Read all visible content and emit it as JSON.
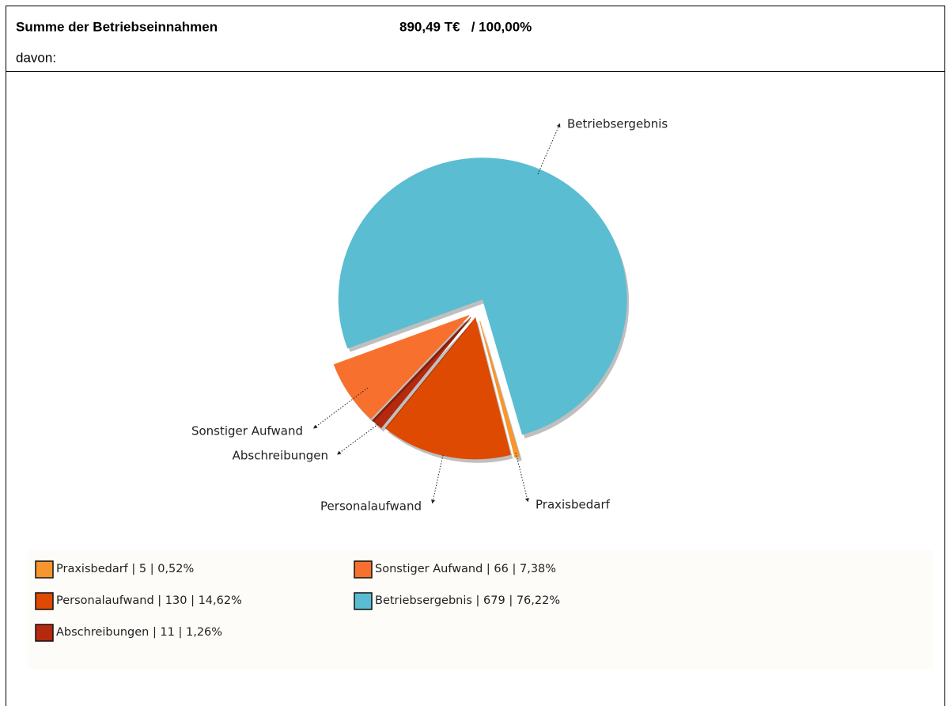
{
  "header": {
    "title": "Summe der Betriebseinnahmen",
    "total": "890,49 T€   / 100,00%",
    "subtitle": "davon:"
  },
  "chart_data": {
    "type": "pie",
    "categories": [
      "Praxisbedarf",
      "Personalaufwand",
      "Abschreibungen",
      "Sonstiger Aufwand",
      "Betriebsergebnis"
    ],
    "values": [
      0.52,
      14.62,
      1.26,
      7.38,
      76.22
    ],
    "value_labels": [
      "Praxisbedarf | 5 | 0,52%",
      "Personalaufwand | 130 | 14,62%",
      "Abschreibungen | 11 | 1,26%",
      "Sonstiger Aufwand | 66 | 7,38%",
      "Betriebsergebnis | 679 | 76,22%"
    ],
    "colors": [
      "#f7962e",
      "#df4a02",
      "#b42a0e",
      "#f8702e",
      "#5bbdd2"
    ]
  }
}
